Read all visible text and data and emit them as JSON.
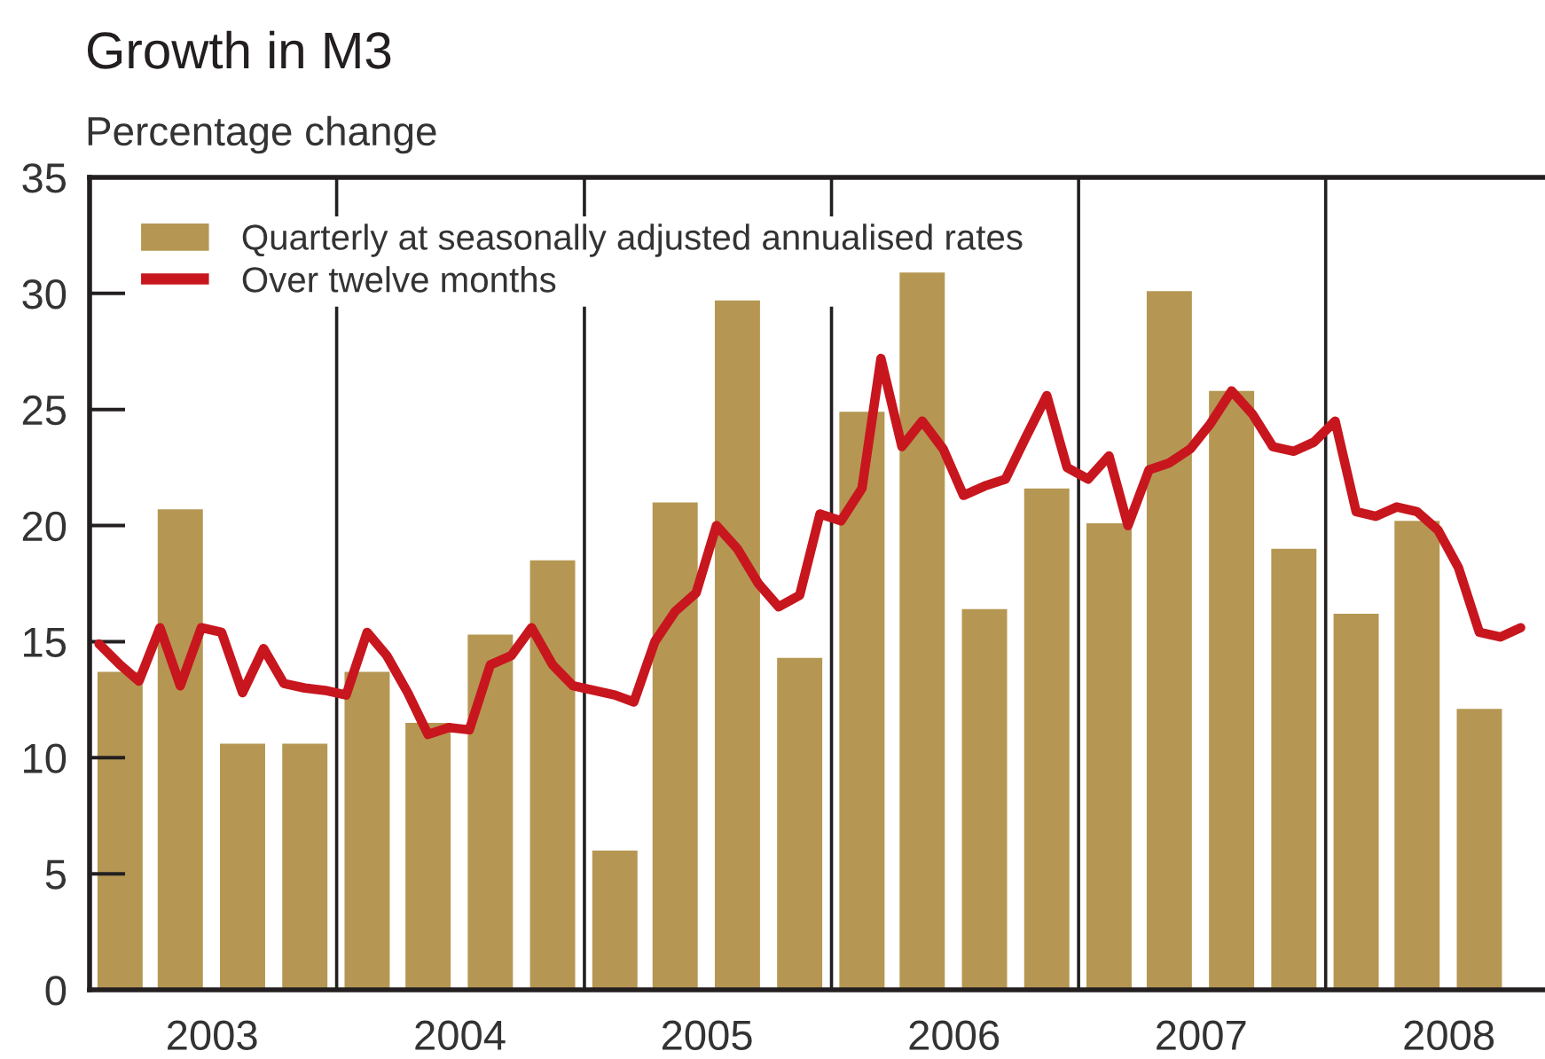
{
  "chart_data": {
    "type": "bar",
    "title": "Growth in M3",
    "ylabel": "Percentage change",
    "legend": "top left",
    "xlim": [
      "2003-01-01",
      "2008-11-20"
    ],
    "xticks": [
      {
        "value": "2003-07-01",
        "label": "2003"
      },
      {
        "value": "2004-07-01",
        "label": "2004"
      },
      {
        "value": "2005-07-01",
        "label": "2005"
      },
      {
        "value": "2006-07-01",
        "label": "2006"
      },
      {
        "value": "2007-07-01",
        "label": "2007"
      },
      {
        "value": "2008-07-01",
        "label": "2008"
      }
    ],
    "ylim": [
      0,
      35
    ],
    "yticks": [
      0,
      5,
      10,
      15,
      20,
      25,
      30,
      35
    ],
    "ref_lines": [
      {
        "axis": "x",
        "value": "2004-01-01",
        "color": "#231f20"
      },
      {
        "axis": "x",
        "value": "2005-01-01",
        "color": "#231f20"
      },
      {
        "axis": "x",
        "value": "2006-01-01",
        "color": "#231f20"
      },
      {
        "axis": "x",
        "value": "2007-01-01",
        "color": "#231f20"
      },
      {
        "axis": "x",
        "value": "2008-01-01",
        "color": "#231f20"
      }
    ],
    "series": [
      {
        "name": "Quarterly at seasonally adjusted annualised rates",
        "color": "#b59753",
        "x": [
          "2003-02-15",
          "2003-05-15",
          "2003-08-15",
          "2003-11-15",
          "2004-02-15",
          "2004-05-15",
          "2004-08-15",
          "2004-11-15",
          "2005-02-15",
          "2005-05-15",
          "2005-08-15",
          "2005-11-15",
          "2006-02-15",
          "2006-05-15",
          "2006-08-15",
          "2006-11-15",
          "2007-02-15",
          "2007-05-15",
          "2007-08-15",
          "2007-11-15",
          "2008-02-15",
          "2008-05-15",
          "2008-08-15"
        ],
        "values": [
          13.7,
          20.7,
          10.6,
          10.6,
          13.7,
          11.5,
          15.3,
          18.5,
          6.0,
          21.0,
          29.7,
          14.3,
          24.9,
          30.9,
          16.4,
          21.6,
          20.1,
          30.1,
          25.8,
          19.0,
          16.2,
          20.2,
          12.1
        ]
      },
      {
        "name": "Over twelve months",
        "type": "line",
        "color": "#c8161e",
        "line_style": "solid",
        "x": [
          "2003-01-15",
          "2003-02-15",
          "2003-03-15",
          "2003-04-15",
          "2003-05-15",
          "2003-06-15",
          "2003-07-15",
          "2003-08-15",
          "2003-09-15",
          "2003-10-15",
          "2003-11-15",
          "2003-12-15",
          "2004-01-15",
          "2004-02-15",
          "2004-03-15",
          "2004-04-15",
          "2004-05-15",
          "2004-06-15",
          "2004-07-15",
          "2004-08-15",
          "2004-09-15",
          "2004-10-15",
          "2004-11-15",
          "2004-12-15",
          "2005-01-15",
          "2005-02-15",
          "2005-03-15",
          "2005-04-15",
          "2005-05-15",
          "2005-06-15",
          "2005-07-15",
          "2005-08-15",
          "2005-09-15",
          "2005-10-15",
          "2005-11-15",
          "2005-12-15",
          "2006-01-15",
          "2006-02-15",
          "2006-03-15",
          "2006-04-15",
          "2006-05-15",
          "2006-06-15",
          "2006-07-15",
          "2006-08-15",
          "2006-09-15",
          "2006-10-15",
          "2006-11-15",
          "2006-12-15",
          "2007-01-15",
          "2007-02-15",
          "2007-03-15",
          "2007-04-15",
          "2007-05-15",
          "2007-06-15",
          "2007-07-15",
          "2007-08-15",
          "2007-09-15",
          "2007-10-15",
          "2007-11-15",
          "2007-12-15",
          "2008-01-15",
          "2008-02-15",
          "2008-03-15",
          "2008-04-15",
          "2008-05-15",
          "2008-06-15",
          "2008-07-15",
          "2008-08-15",
          "2008-09-15",
          "2008-10-15"
        ],
        "values": [
          14.9,
          14.0,
          13.3,
          15.6,
          13.1,
          15.6,
          15.4,
          12.8,
          14.7,
          13.2,
          13.0,
          12.9,
          12.7,
          15.4,
          14.4,
          12.8,
          11.0,
          11.3,
          11.2,
          14.0,
          14.4,
          15.6,
          14.0,
          13.1,
          12.9,
          12.7,
          12.4,
          15.0,
          16.3,
          17.1,
          20.0,
          19.0,
          17.5,
          16.5,
          17.0,
          20.5,
          20.2,
          21.6,
          27.2,
          23.4,
          24.5,
          23.3,
          21.3,
          21.7,
          22.0,
          23.8,
          25.6,
          22.5,
          22.0,
          23.0,
          20.0,
          22.4,
          22.7,
          23.3,
          24.4,
          25.8,
          24.8,
          23.4,
          23.2,
          23.6,
          24.5,
          20.6,
          20.4,
          20.8,
          20.6,
          19.8,
          18.2,
          15.4,
          15.2,
          15.6
        ]
      }
    ]
  }
}
